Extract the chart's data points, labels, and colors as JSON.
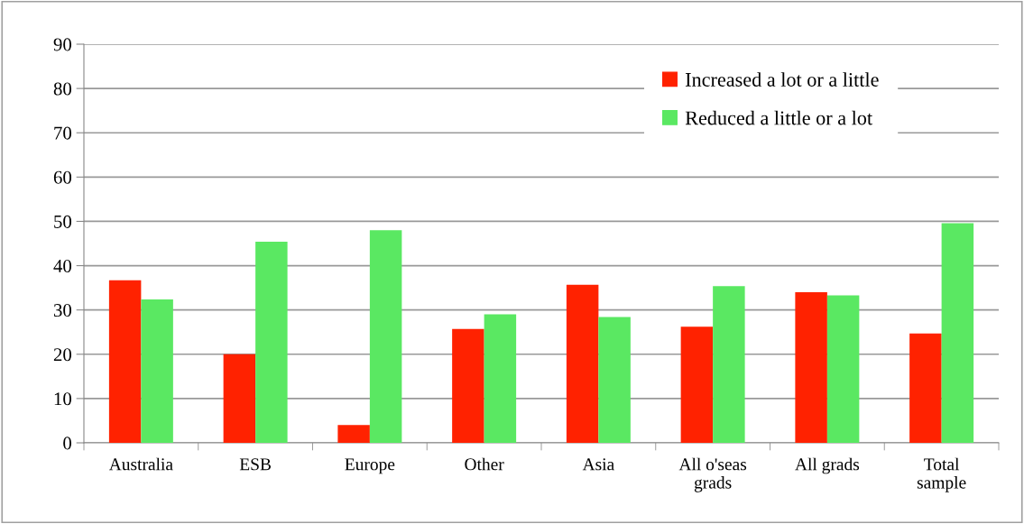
{
  "chart_data": {
    "type": "bar",
    "categories": [
      "Australia",
      "ESB",
      "Europe",
      "Other",
      "Asia",
      "All o'seas\ngrads",
      "All grads",
      "Total\nsample"
    ],
    "series": [
      {
        "name": "Increased a lot or a little",
        "color": "#ff2200",
        "values": [
          36.7,
          20.0,
          4.0,
          25.7,
          35.7,
          26.2,
          34.0,
          24.7
        ]
      },
      {
        "name": "Reduced a little or a lot",
        "color": "#5ae862",
        "values": [
          32.4,
          45.4,
          48.0,
          29.0,
          28.4,
          35.4,
          33.3,
          49.6
        ]
      }
    ],
    "ylim": [
      0,
      90
    ],
    "yticks": [
      0,
      10,
      20,
      30,
      40,
      50,
      60,
      70,
      80,
      90
    ],
    "grid": "y",
    "legend": "top right"
  }
}
